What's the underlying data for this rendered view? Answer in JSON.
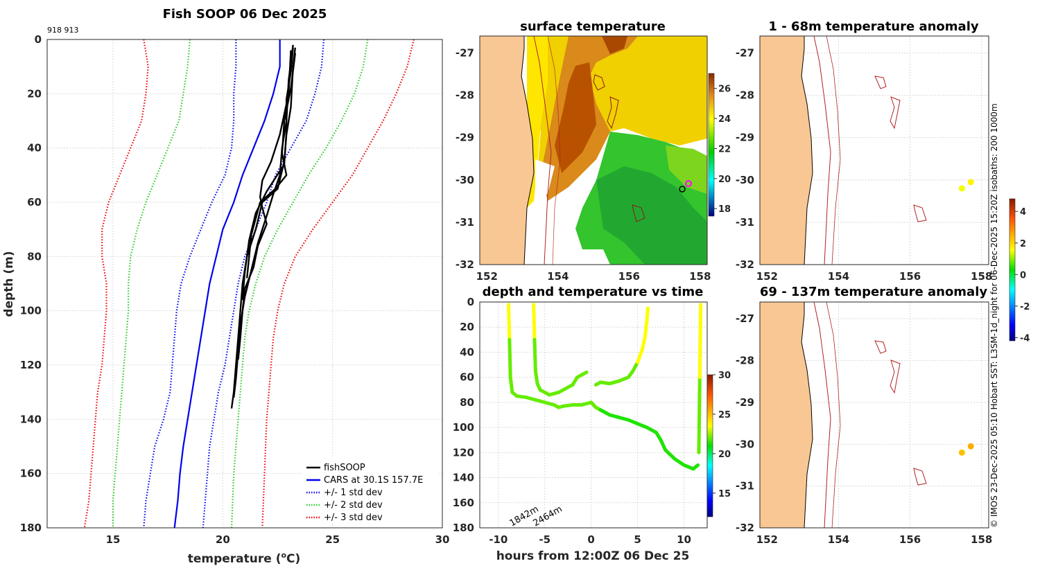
{
  "chart_data": [
    {
      "id": "profile",
      "type": "line",
      "title": "Fish SOOP 06 Dec 2025",
      "annotation": "918 913",
      "xlabel": "temperature (",
      "xlabel_sup": "o",
      "xlabel_end": "C)",
      "ylabel": "depth (m)",
      "xlim": [
        12,
        30
      ],
      "ylim": [
        0,
        180
      ],
      "xticks": [
        15,
        20,
        25,
        30
      ],
      "yticks": [
        0,
        20,
        40,
        60,
        80,
        100,
        120,
        140,
        160,
        180
      ],
      "legend_position": "bottom-right",
      "series": [
        {
          "name": "fishSOOP",
          "color": "#000000",
          "style": "solid",
          "casts": [
            {
              "depth": [
                3,
                10,
                25,
                35,
                45,
                55,
                60,
                70,
                80,
                90,
                100,
                110,
                120,
                130,
                136
              ],
              "temp": [
                23.3,
                23.2,
                23.1,
                22.9,
                22.8,
                22.5,
                21.8,
                21.5,
                21.1,
                20.9,
                20.8,
                20.7,
                20.6,
                20.5,
                20.4
              ]
            },
            {
              "depth": [
                2,
                15,
                30,
                40,
                50,
                57,
                65,
                75,
                85,
                95,
                105,
                115,
                125,
                132
              ],
              "temp": [
                23.2,
                23.0,
                22.9,
                22.7,
                22.6,
                22.3,
                22.0,
                21.6,
                21.3,
                21.0,
                20.8,
                20.7,
                20.6,
                20.5
              ]
            },
            {
              "depth": [
                4,
                20,
                35,
                45,
                52,
                58,
                62,
                68,
                76,
                84,
                92,
                100,
                110,
                118
              ],
              "temp": [
                23.1,
                23.0,
                22.6,
                22.2,
                21.8,
                21.7,
                21.8,
                22.0,
                21.6,
                21.4,
                21.0,
                20.9,
                20.8,
                20.7
              ]
            },
            {
              "depth": [
                5,
                18,
                30,
                42,
                50,
                55,
                60,
                66,
                72,
                80,
                88
              ],
              "temp": [
                23.3,
                23.1,
                22.8,
                22.7,
                22.9,
                22.4,
                21.7,
                21.5,
                21.3,
                21.2,
                21.1
              ]
            },
            {
              "depth": [
                3,
                12,
                22,
                34,
                46,
                56,
                64,
                74,
                86,
                96
              ],
              "temp": [
                23.2,
                23.1,
                22.9,
                22.9,
                22.8,
                22.0,
                21.5,
                21.2,
                21.0,
                20.9
              ]
            }
          ]
        },
        {
          "name": "CARS at 30.1S 157.7E",
          "color": "#0000ee",
          "style": "solid",
          "depth": [
            0,
            10,
            20,
            30,
            40,
            50,
            60,
            70,
            80,
            90,
            100,
            110,
            120,
            130,
            140,
            150,
            160,
            170,
            180
          ],
          "temp": [
            22.6,
            22.6,
            22.3,
            21.9,
            21.4,
            20.9,
            20.5,
            20.0,
            19.7,
            19.4,
            19.2,
            19.0,
            18.8,
            18.6,
            18.4,
            18.2,
            18.05,
            17.95,
            17.8
          ]
        },
        {
          "name": "+/- 1 std dev",
          "color": "#0000ee",
          "style": "dotted",
          "lower": {
            "depth": [
              0,
              10,
              20,
              30,
              40,
              50,
              60,
              70,
              80,
              90,
              100,
              110,
              120,
              130,
              140,
              150,
              160,
              170,
              180
            ],
            "temp": [
              20.6,
              20.6,
              20.5,
              20.5,
              20.4,
              20.1,
              19.5,
              19.0,
              18.5,
              18.1,
              17.9,
              17.8,
              17.7,
              17.6,
              17.3,
              16.9,
              16.7,
              16.5,
              16.4
            ]
          },
          "upper": {
            "depth": [
              0,
              10,
              20,
              30,
              40,
              50,
              60,
              70,
              80,
              90,
              100,
              110,
              120,
              130,
              140,
              150,
              160,
              170,
              180
            ],
            "temp": [
              24.6,
              24.5,
              24.2,
              23.8,
              23.1,
              22.4,
              22.0,
              21.5,
              21.0,
              20.7,
              20.5,
              20.3,
              20.1,
              19.8,
              19.6,
              19.4,
              19.3,
              19.2,
              19.1
            ]
          }
        },
        {
          "name": "+/- 2 std dev",
          "color": "#22cc22",
          "style": "dotted",
          "lower": {
            "depth": [
              0,
              10,
              20,
              30,
              40,
              50,
              60,
              70,
              80,
              90,
              100,
              110,
              120,
              130,
              140,
              150,
              160,
              170,
              180
            ],
            "temp": [
              18.5,
              18.4,
              18.2,
              18.0,
              17.5,
              17.0,
              16.5,
              16.1,
              15.8,
              15.7,
              15.7,
              15.6,
              15.5,
              15.4,
              15.3,
              15.2,
              15.1,
              15.0,
              15.0
            ]
          },
          "upper": {
            "depth": [
              0,
              10,
              20,
              30,
              40,
              50,
              60,
              70,
              80,
              90,
              100,
              110,
              120,
              130,
              140,
              150,
              160,
              170,
              180
            ],
            "temp": [
              26.6,
              26.4,
              26.0,
              25.4,
              24.7,
              23.9,
              23.2,
              22.5,
              21.9,
              21.5,
              21.2,
              21.0,
              20.9,
              20.8,
              20.7,
              20.6,
              20.5,
              20.45,
              20.4
            ]
          }
        },
        {
          "name": "+/- 3 std dev",
          "color": "#ee0000",
          "style": "dotted",
          "lower": {
            "depth": [
              0,
              10,
              20,
              30,
              40,
              50,
              60,
              70,
              80,
              90,
              100,
              110,
              120,
              130,
              140,
              150,
              160,
              170,
              180
            ],
            "temp": [
              16.4,
              16.6,
              16.5,
              16.3,
              15.8,
              15.3,
              14.8,
              14.5,
              14.5,
              14.7,
              14.7,
              14.6,
              14.5,
              14.3,
              14.2,
              14.1,
              14.0,
              13.9,
              13.7
            ]
          },
          "upper": {
            "depth": [
              0,
              10,
              20,
              30,
              40,
              50,
              60,
              70,
              80,
              90,
              100,
              110,
              120,
              130,
              140,
              150,
              160,
              170,
              180
            ],
            "temp": [
              28.7,
              28.4,
              27.9,
              27.3,
              26.6,
              25.9,
              25.0,
              24.1,
              23.3,
              22.8,
              22.5,
              22.3,
              22.2,
              22.1,
              22.0,
              21.95,
              21.9,
              21.85,
              21.8
            ]
          }
        }
      ]
    },
    {
      "id": "sst_map",
      "type": "heatmap",
      "title": "surface temperature",
      "xlim": [
        151.8,
        158.2
      ],
      "ylim": [
        -32,
        -26.6
      ],
      "xticks": [
        152,
        154,
        156,
        158
      ],
      "yticks": [
        -27,
        -28,
        -29,
        -30,
        -31,
        -32
      ],
      "colorbar": {
        "min": 17.5,
        "max": 27,
        "ticks": [
          18,
          20,
          22,
          24,
          26
        ]
      }
    },
    {
      "id": "depth_time",
      "type": "scatter",
      "title": "depth and temperature vs time",
      "xlabel": "hours from 12:00Z 06 Dec 25",
      "xlim": [
        -12,
        12.5
      ],
      "ylim": [
        0,
        180
      ],
      "xticks": [
        -10,
        -5,
        0,
        5,
        10
      ],
      "yticks": [
        0,
        20,
        40,
        60,
        80,
        100,
        120,
        140,
        160,
        180
      ],
      "bottom_depth_labels": [
        "1842m",
        "2464m"
      ],
      "colorbar": {
        "min": 12,
        "max": 30,
        "ticks": [
          15,
          20,
          25,
          30
        ]
      },
      "tracks": [
        {
          "hours": [
            -8.9,
            -8.8,
            -8.7,
            -8.5,
            -8.0,
            -7.0,
            -6.0,
            -5.0,
            -4.0,
            -3.5,
            -3.0,
            -2.0,
            -1.0,
            0.0,
            0.5,
            1.0,
            2.0,
            3.0,
            4.0,
            5.0,
            6.0,
            7.0,
            7.5,
            8.0,
            9.0,
            10.0,
            11.0,
            11.5
          ],
          "depth": [
            2,
            30,
            60,
            72,
            75,
            76,
            78,
            80,
            82,
            84,
            83,
            82,
            82,
            80,
            84,
            86,
            90,
            92,
            94,
            97,
            100,
            104,
            110,
            118,
            125,
            130,
            133,
            130
          ]
        },
        {
          "hours": [
            -6.2,
            -6.1,
            -6.0,
            -5.8,
            -5.5,
            -5.0,
            -4.5,
            -4.0,
            -3.5,
            -3.0,
            -2.5,
            -2.0,
            -1.5,
            -1.0,
            -0.5
          ],
          "depth": [
            2,
            30,
            55,
            65,
            70,
            72,
            74,
            73,
            72,
            70,
            68,
            66,
            60,
            58,
            56
          ]
        },
        {
          "hours": [
            0.5,
            1.0,
            2.0,
            3.0,
            4.0,
            4.5,
            5.0,
            5.5,
            5.8,
            6.0,
            6.1
          ],
          "depth": [
            66,
            64,
            65,
            63,
            60,
            55,
            48,
            38,
            28,
            15,
            5
          ]
        },
        {
          "hours": [
            11.6,
            11.7,
            11.8
          ],
          "depth": [
            120,
            60,
            2
          ]
        }
      ]
    },
    {
      "id": "anom_shallow",
      "type": "heatmap",
      "title": "1 - 68m temperature anomaly",
      "xlim": [
        151.8,
        158.2
      ],
      "ylim": [
        -32,
        -26.6
      ],
      "xticks": [
        152,
        154,
        156,
        158
      ],
      "yticks": [
        -27,
        -28,
        -29,
        -30,
        -31,
        -32
      ],
      "points": [
        {
          "lon": 157.45,
          "lat": -30.2,
          "anom": 1.5
        },
        {
          "lon": 157.7,
          "lat": -30.05,
          "anom": 1.7
        }
      ]
    },
    {
      "id": "anom_deep",
      "type": "heatmap",
      "title": "69 - 137m temperature anomaly",
      "xlim": [
        151.8,
        158.2
      ],
      "ylim": [
        -32,
        -26.6
      ],
      "xticks": [
        152,
        154,
        156,
        158
      ],
      "yticks": [
        -27,
        -28,
        -29,
        -30,
        -31,
        -32
      ],
      "points": [
        {
          "lon": 157.45,
          "lat": -30.2,
          "anom": 2.3
        },
        {
          "lon": 157.7,
          "lat": -30.05,
          "anom": 2.5
        }
      ]
    },
    {
      "id": "anom_colorbar",
      "type": "heatmap",
      "colorbar": {
        "min": -4.2,
        "max": 4.8,
        "ticks": [
          -4,
          -2,
          0,
          2,
          4
        ]
      }
    }
  ],
  "side_credit": "© IMOS 23-Dec-2025 05:10 Hobart SST: L3SM-1d_night for 06-Dec-2025 15:20Z isobaths: 200  1000m",
  "colors": {
    "land": "#f9c794",
    "isobath": "#b22222",
    "grid": "#d9d9d9"
  }
}
